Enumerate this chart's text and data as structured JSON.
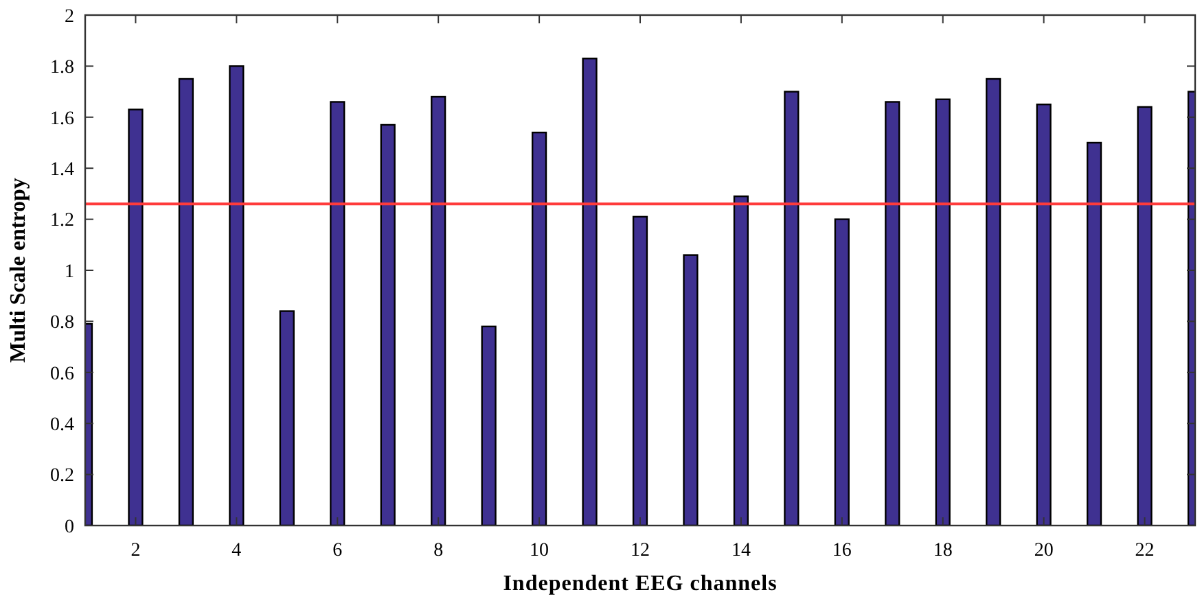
{
  "chart_data": {
    "type": "bar",
    "xlabel": "Independent EEG channels",
    "ylabel": "Multi Scale entropy",
    "x": [
      1,
      2,
      3,
      4,
      5,
      6,
      7,
      8,
      9,
      10,
      11,
      12,
      13,
      14,
      15,
      16,
      17,
      18,
      19,
      20,
      21,
      22,
      23
    ],
    "series": [
      {
        "color": "#3f3191",
        "values": [
          0.79,
          1.63,
          1.75,
          1.8,
          0.84,
          1.66,
          1.57,
          1.68,
          0.78,
          1.54,
          1.83,
          1.21,
          1.06,
          1.29,
          1.7,
          1.2,
          1.66,
          1.67,
          1.75,
          1.65,
          1.5,
          1.64,
          1.7
        ]
      }
    ],
    "xlim": [
      1,
      23
    ],
    "xticks": [
      2,
      4,
      6,
      8,
      10,
      12,
      14,
      16,
      18,
      20,
      22
    ],
    "ylim": [
      0,
      2
    ],
    "yticks": [
      0,
      0.2,
      0.4,
      0.6,
      0.8,
      1,
      1.2,
      1.4,
      1.6,
      1.8,
      2
    ],
    "ref_lines": [
      {
        "axis": "y",
        "value": 1.26,
        "color": "#ff3b3b"
      }
    ],
    "grid": false
  }
}
